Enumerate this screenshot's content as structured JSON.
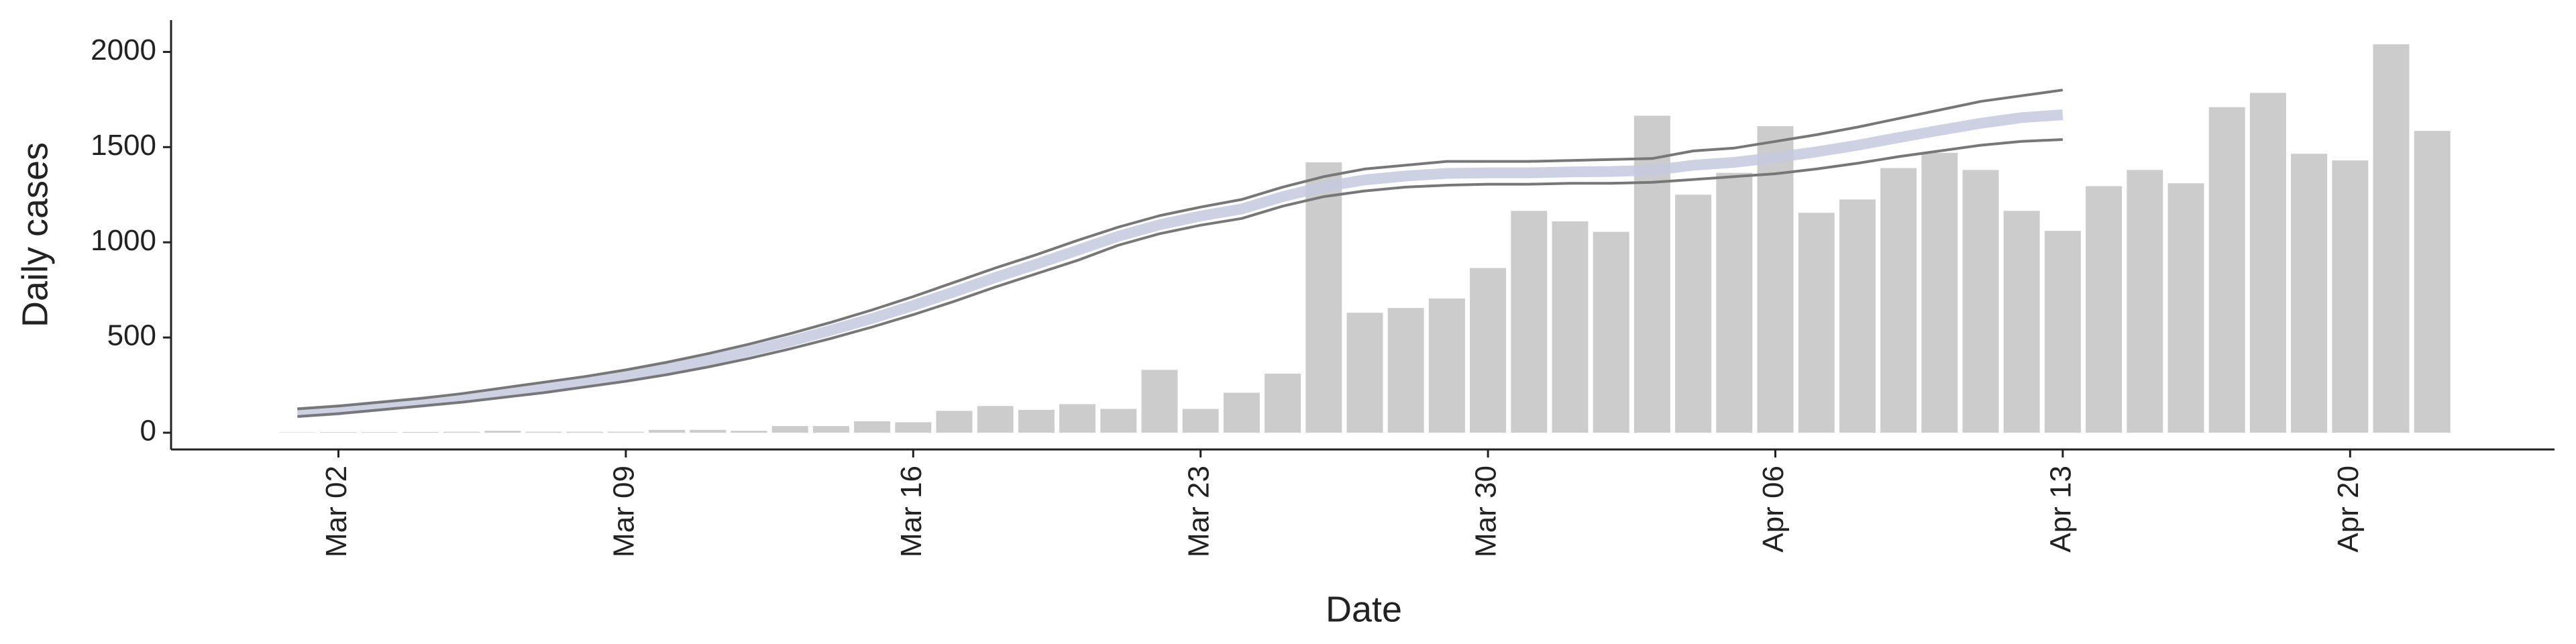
{
  "chart_data": {
    "type": "bar",
    "x_label": "Date",
    "y_label": "Daily cases",
    "x": [
      "Mar 01",
      "Mar 02",
      "Mar 03",
      "Mar 04",
      "Mar 05",
      "Mar 06",
      "Mar 07",
      "Mar 08",
      "Mar 09",
      "Mar 10",
      "Mar 11",
      "Mar 12",
      "Mar 13",
      "Mar 14",
      "Mar 15",
      "Mar 16",
      "Mar 17",
      "Mar 18",
      "Mar 19",
      "Mar 20",
      "Mar 21",
      "Mar 22",
      "Mar 23",
      "Mar 24",
      "Mar 25",
      "Mar 26",
      "Mar 27",
      "Mar 28",
      "Mar 29",
      "Mar 30",
      "Mar 31",
      "Apr 01",
      "Apr 02",
      "Apr 03",
      "Apr 04",
      "Apr 05",
      "Apr 06",
      "Apr 07",
      "Apr 08",
      "Apr 09",
      "Apr 10",
      "Apr 11",
      "Apr 12",
      "Apr 13",
      "Apr 14",
      "Apr 15",
      "Apr 16",
      "Apr 17",
      "Apr 18",
      "Apr 19",
      "Apr 20",
      "Apr 21",
      "Apr 22"
    ],
    "xticks": [
      "Mar 02",
      "Mar 09",
      "Mar 16",
      "Mar 23",
      "Mar 30",
      "Apr 06",
      "Apr 13",
      "Apr 20"
    ],
    "ylim": [
      -88,
      2167
    ],
    "yticks": [
      0,
      500,
      1000,
      1500,
      2000
    ],
    "series": [
      {
        "type": "bar",
        "color": "#cccccc",
        "values": [
          2,
          3,
          3,
          4,
          5,
          10,
          5,
          5,
          5,
          15,
          15,
          10,
          35,
          35,
          60,
          55,
          115,
          140,
          120,
          150,
          125,
          330,
          125,
          210,
          310,
          1420,
          630,
          655,
          705,
          865,
          1165,
          1110,
          1055,
          1665,
          1250,
          1365,
          1610,
          1155,
          1225,
          1390,
          1470,
          1380,
          1165,
          1060,
          1295,
          1380,
          1310,
          1710,
          1785,
          1465,
          1430,
          2040,
          1585
        ]
      },
      {
        "type": "line",
        "color": "#777777",
        "values": [
          125,
          140,
          160,
          180,
          205,
          235,
          265,
          295,
          330,
          370,
          415,
          465,
          520,
          580,
          645,
          715,
          790,
          865,
          935,
          1010,
          1080,
          1140,
          1185,
          1225,
          1290,
          1345,
          1385,
          1405,
          1425,
          1425,
          1425,
          1430,
          1435,
          1440,
          1480,
          1495,
          1530,
          1565,
          1605,
          1650,
          1695,
          1740,
          1770,
          1800,
          null,
          null,
          null,
          null,
          null,
          null,
          null,
          null,
          null
        ]
      },
      {
        "type": "band-line",
        "color": "#c3c9de",
        "values": [
          105,
          120,
          140,
          160,
          182,
          210,
          238,
          268,
          300,
          338,
          380,
          428,
          480,
          538,
          600,
          668,
          740,
          815,
          885,
          958,
          1032,
          1092,
          1138,
          1175,
          1240,
          1292,
          1328,
          1348,
          1362,
          1365,
          1365,
          1370,
          1372,
          1378,
          1405,
          1420,
          1445,
          1475,
          1510,
          1550,
          1588,
          1625,
          1655,
          1670,
          null,
          null,
          null,
          null,
          null,
          null,
          null,
          null,
          null
        ]
      },
      {
        "type": "line",
        "color": "#777777",
        "values": [
          85,
          100,
          120,
          140,
          160,
          185,
          210,
          240,
          270,
          305,
          345,
          390,
          440,
          495,
          555,
          620,
          690,
          765,
          835,
          905,
          985,
          1045,
          1090,
          1125,
          1190,
          1240,
          1270,
          1290,
          1300,
          1305,
          1305,
          1310,
          1310,
          1315,
          1330,
          1345,
          1360,
          1385,
          1415,
          1450,
          1480,
          1510,
          1530,
          1540,
          null,
          null,
          null,
          null,
          null,
          null,
          null,
          null,
          null
        ]
      }
    ]
  }
}
